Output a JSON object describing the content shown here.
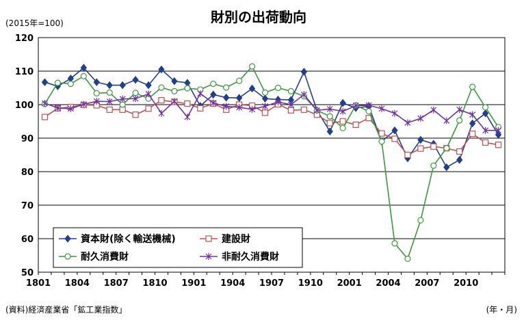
{
  "chart_data": {
    "type": "line",
    "title": "財別の出荷動向",
    "subtitle": "(2015年=100)",
    "source": "(資料)経済産業省「鉱工業指数」",
    "xlabel": "(年・月)",
    "ylabel": "",
    "ylim": [
      50,
      120
    ],
    "yticks": [
      "50",
      "60",
      "70",
      "80",
      "90",
      "100",
      "110",
      "120"
    ],
    "xtick_labels": [
      "1801",
      "1804",
      "1807",
      "1810",
      "1901",
      "1904",
      "1907",
      "1910",
      "2001",
      "2004",
      "2007",
      "2010"
    ],
    "x": [
      "1801",
      "1802",
      "1803",
      "1804",
      "1805",
      "1806",
      "1807",
      "1808",
      "1809",
      "1810",
      "1811",
      "1812",
      "1901",
      "1902",
      "1903",
      "1904",
      "1905",
      "1906",
      "1907",
      "1908",
      "1909",
      "1910",
      "1911",
      "1912",
      "2001",
      "2002",
      "2003",
      "2004",
      "2005",
      "2006",
      "2007",
      "2008",
      "2009",
      "2010",
      "2011",
      "2012"
    ],
    "grid": true,
    "legend_position": "bottom-left",
    "series": [
      {
        "name": "資本財(除く輸送機械)",
        "color": "#1f3f8f",
        "marker": "diamond",
        "values": [
          106.7,
          105.5,
          107.8,
          111.0,
          106.7,
          105.8,
          105.8,
          107.4,
          105.8,
          110.5,
          107.0,
          106.5,
          99.6,
          103.0,
          102.1,
          102.0,
          104.8,
          101.8,
          101.5,
          101.4,
          109.8,
          98.3,
          92.0,
          100.5,
          99.0,
          99.5,
          89.0,
          92.3,
          84.0,
          89.5,
          88.3,
          81.3,
          83.5,
          94.4,
          97.4,
          91.0
        ]
      },
      {
        "name": "建設財",
        "color": "#c0504d",
        "marker": "square",
        "values": [
          96.3,
          98.9,
          99.3,
          99.9,
          99.8,
          98.5,
          98.5,
          97.0,
          98.8,
          101.3,
          100.8,
          100.3,
          98.9,
          100.3,
          98.5,
          100.0,
          99.7,
          97.6,
          100.1,
          98.3,
          98.5,
          97.0,
          94.5,
          95.0,
          94.0,
          96.0,
          91.4,
          89.8,
          85.0,
          86.9,
          87.5,
          87.0,
          86.0,
          91.3,
          88.7,
          88.0
        ]
      },
      {
        "name": "耐久消費財",
        "color": "#3a9a3a",
        "marker": "circle",
        "values": [
          100.2,
          106.5,
          106.2,
          108.5,
          103.4,
          103.6,
          100.0,
          103.5,
          101.8,
          105.1,
          104.0,
          104.9,
          104.5,
          106.2,
          105.1,
          107.1,
          111.4,
          103.6,
          105.0,
          104.0,
          102.5,
          98.3,
          96.5,
          93.0,
          99.8,
          98.0,
          89.0,
          58.6,
          54.0,
          65.5,
          81.8,
          87.0,
          95.3,
          105.3,
          99.2,
          93.3
        ]
      },
      {
        "name": "非耐久消費財",
        "color": "#7030a0",
        "marker": "star",
        "values": [
          100.4,
          99.0,
          98.8,
          100.1,
          101.0,
          100.9,
          101.7,
          101.8,
          103.2,
          97.4,
          101.0,
          96.3,
          103.3,
          100.5,
          99.5,
          99.2,
          98.6,
          99.5,
          100.8,
          100.0,
          103.0,
          98.3,
          98.7,
          98.0,
          99.7,
          99.8,
          98.8,
          97.4,
          94.6,
          95.9,
          98.4,
          95.2,
          98.5,
          97.0,
          92.3,
          92.3
        ]
      }
    ]
  }
}
